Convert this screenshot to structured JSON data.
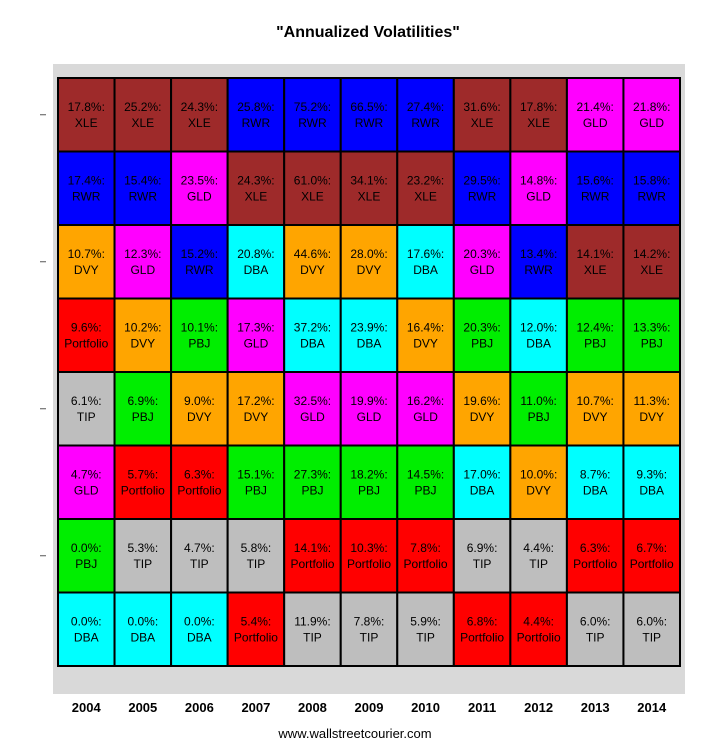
{
  "chart_data": {
    "type": "table",
    "title": "\"Annualized Volatilities\"",
    "years": [
      "2004",
      "2005",
      "2006",
      "2007",
      "2008",
      "2009",
      "2010",
      "2011",
      "2012",
      "2013",
      "2014"
    ],
    "colors": {
      "XLE": "#9e2a2a",
      "RWR": "#0000ff",
      "GLD": "#ff00ff",
      "DVY": "#ffa500",
      "DBA": "#00ffff",
      "Portfolio": "#ff0000",
      "PBJ": "#00ee00",
      "TIP": "#bebebe"
    },
    "grid": [
      [
        {
          "value": "17.8%:",
          "asset": "XLE"
        },
        {
          "value": "25.2%:",
          "asset": "XLE"
        },
        {
          "value": "24.3%:",
          "asset": "XLE"
        },
        {
          "value": "25.8%:",
          "asset": "RWR"
        },
        {
          "value": "75.2%:",
          "asset": "RWR"
        },
        {
          "value": "66.5%:",
          "asset": "RWR"
        },
        {
          "value": "27.4%:",
          "asset": "RWR"
        },
        {
          "value": "31.6%:",
          "asset": "XLE"
        },
        {
          "value": "17.8%:",
          "asset": "XLE"
        },
        {
          "value": "21.4%:",
          "asset": "GLD"
        },
        {
          "value": "21.8%:",
          "asset": "GLD"
        }
      ],
      [
        {
          "value": "17.4%:",
          "asset": "RWR"
        },
        {
          "value": "15.4%:",
          "asset": "RWR"
        },
        {
          "value": "23.5%:",
          "asset": "GLD"
        },
        {
          "value": "24.3%:",
          "asset": "XLE"
        },
        {
          "value": "61.0%:",
          "asset": "XLE"
        },
        {
          "value": "34.1%:",
          "asset": "XLE"
        },
        {
          "value": "23.2%:",
          "asset": "XLE"
        },
        {
          "value": "29.5%:",
          "asset": "RWR"
        },
        {
          "value": "14.8%:",
          "asset": "GLD"
        },
        {
          "value": "15.6%:",
          "asset": "RWR"
        },
        {
          "value": "15.8%:",
          "asset": "RWR"
        }
      ],
      [
        {
          "value": "10.7%:",
          "asset": "DVY"
        },
        {
          "value": "12.3%:",
          "asset": "GLD"
        },
        {
          "value": "15.2%:",
          "asset": "RWR"
        },
        {
          "value": "20.8%:",
          "asset": "DBA"
        },
        {
          "value": "44.6%:",
          "asset": "DVY"
        },
        {
          "value": "28.0%:",
          "asset": "DVY"
        },
        {
          "value": "17.6%:",
          "asset": "DBA"
        },
        {
          "value": "20.3%:",
          "asset": "GLD"
        },
        {
          "value": "13.4%:",
          "asset": "RWR"
        },
        {
          "value": "14.1%:",
          "asset": "XLE"
        },
        {
          "value": "14.2%:",
          "asset": "XLE"
        }
      ],
      [
        {
          "value": "9.6%:",
          "asset": "Portfolio"
        },
        {
          "value": "10.2%:",
          "asset": "DVY"
        },
        {
          "value": "10.1%:",
          "asset": "PBJ"
        },
        {
          "value": "17.3%:",
          "asset": "GLD"
        },
        {
          "value": "37.2%:",
          "asset": "DBA"
        },
        {
          "value": "23.9%:",
          "asset": "DBA"
        },
        {
          "value": "16.4%:",
          "asset": "DVY"
        },
        {
          "value": "20.3%:",
          "asset": "PBJ"
        },
        {
          "value": "12.0%:",
          "asset": "DBA"
        },
        {
          "value": "12.4%:",
          "asset": "PBJ"
        },
        {
          "value": "13.3%:",
          "asset": "PBJ"
        }
      ],
      [
        {
          "value": "6.1%:",
          "asset": "TIP"
        },
        {
          "value": "6.9%:",
          "asset": "PBJ"
        },
        {
          "value": "9.0%:",
          "asset": "DVY"
        },
        {
          "value": "17.2%:",
          "asset": "DVY"
        },
        {
          "value": "32.5%:",
          "asset": "GLD"
        },
        {
          "value": "19.9%:",
          "asset": "GLD"
        },
        {
          "value": "16.2%:",
          "asset": "GLD"
        },
        {
          "value": "19.6%:",
          "asset": "DVY"
        },
        {
          "value": "11.0%:",
          "asset": "PBJ"
        },
        {
          "value": "10.7%:",
          "asset": "DVY"
        },
        {
          "value": "11.3%:",
          "asset": "DVY"
        }
      ],
      [
        {
          "value": "4.7%:",
          "asset": "GLD"
        },
        {
          "value": "5.7%:",
          "asset": "Portfolio"
        },
        {
          "value": "6.3%:",
          "asset": "Portfolio"
        },
        {
          "value": "15.1%:",
          "asset": "PBJ"
        },
        {
          "value": "27.3%:",
          "asset": "PBJ"
        },
        {
          "value": "18.2%:",
          "asset": "PBJ"
        },
        {
          "value": "14.5%:",
          "asset": "PBJ"
        },
        {
          "value": "17.0%:",
          "asset": "DBA"
        },
        {
          "value": "10.0%:",
          "asset": "DVY"
        },
        {
          "value": "8.7%:",
          "asset": "DBA"
        },
        {
          "value": "9.3%:",
          "asset": "DBA"
        }
      ],
      [
        {
          "value": "0.0%:",
          "asset": "PBJ"
        },
        {
          "value": "5.3%:",
          "asset": "TIP"
        },
        {
          "value": "4.7%:",
          "asset": "TIP"
        },
        {
          "value": "5.8%:",
          "asset": "TIP"
        },
        {
          "value": "14.1%:",
          "asset": "Portfolio"
        },
        {
          "value": "10.3%:",
          "asset": "Portfolio"
        },
        {
          "value": "7.8%:",
          "asset": "Portfolio"
        },
        {
          "value": "6.9%:",
          "asset": "TIP"
        },
        {
          "value": "4.4%:",
          "asset": "TIP"
        },
        {
          "value": "6.3%:",
          "asset": "Portfolio"
        },
        {
          "value": "6.7%:",
          "asset": "Portfolio"
        }
      ],
      [
        {
          "value": "0.0%:",
          "asset": "DBA"
        },
        {
          "value": "0.0%:",
          "asset": "DBA"
        },
        {
          "value": "0.0%:",
          "asset": "DBA"
        },
        {
          "value": "5.4%:",
          "asset": "Portfolio"
        },
        {
          "value": "11.9%:",
          "asset": "TIP"
        },
        {
          "value": "7.8%:",
          "asset": "TIP"
        },
        {
          "value": "5.9%:",
          "asset": "TIP"
        },
        {
          "value": "6.8%:",
          "asset": "Portfolio"
        },
        {
          "value": "4.4%:",
          "asset": "Portfolio"
        },
        {
          "value": "6.0%:",
          "asset": "TIP"
        },
        {
          "value": "6.0%:",
          "asset": "TIP"
        }
      ]
    ]
  },
  "footer": "www.wallstreetcourier.com"
}
